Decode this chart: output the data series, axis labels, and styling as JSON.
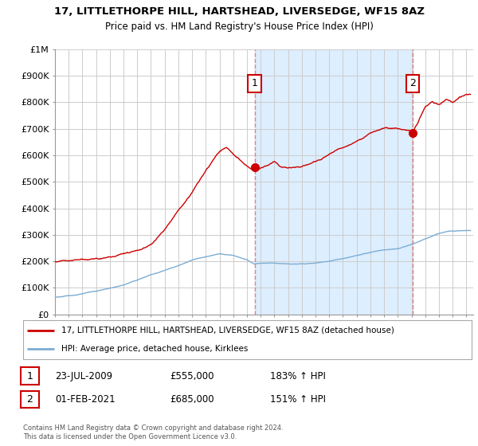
{
  "title": "17, LITTLETHORPE HILL, HARTSHEAD, LIVERSEDGE, WF15 8AZ",
  "subtitle": "Price paid vs. HM Land Registry's House Price Index (HPI)",
  "legend_house": "17, LITTLETHORPE HILL, HARTSHEAD, LIVERSEDGE, WF15 8AZ (detached house)",
  "legend_hpi": "HPI: Average price, detached house, Kirklees",
  "annotation1_date": "23-JUL-2009",
  "annotation1_price": "£555,000",
  "annotation1_hpi": "183% ↑ HPI",
  "annotation2_date": "01-FEB-2021",
  "annotation2_price": "£685,000",
  "annotation2_hpi": "151% ↑ HPI",
  "footer": "Contains HM Land Registry data © Crown copyright and database right 2024.\nThis data is licensed under the Open Government Licence v3.0.",
  "house_color": "#cc0000",
  "hpi_color": "#7aadd4",
  "vline_color": "#e88080",
  "shade_color": "#ddeeff",
  "point1_x": 2009.56,
  "point2_x": 2021.08,
  "point1_y": 555000,
  "point2_y": 685000,
  "ylim": [
    0,
    1000000
  ],
  "xlim_start": 1995,
  "xlim_end": 2025.5,
  "background_color": "#ffffff",
  "grid_color": "#cccccc",
  "ytick_labels": [
    "£0",
    "£100K",
    "£200K",
    "£300K",
    "£400K",
    "£500K",
    "£600K",
    "£700K",
    "£800K",
    "£900K",
    "£1M"
  ],
  "ytick_values": [
    0,
    100000,
    200000,
    300000,
    400000,
    500000,
    600000,
    700000,
    800000,
    900000,
    1000000
  ]
}
